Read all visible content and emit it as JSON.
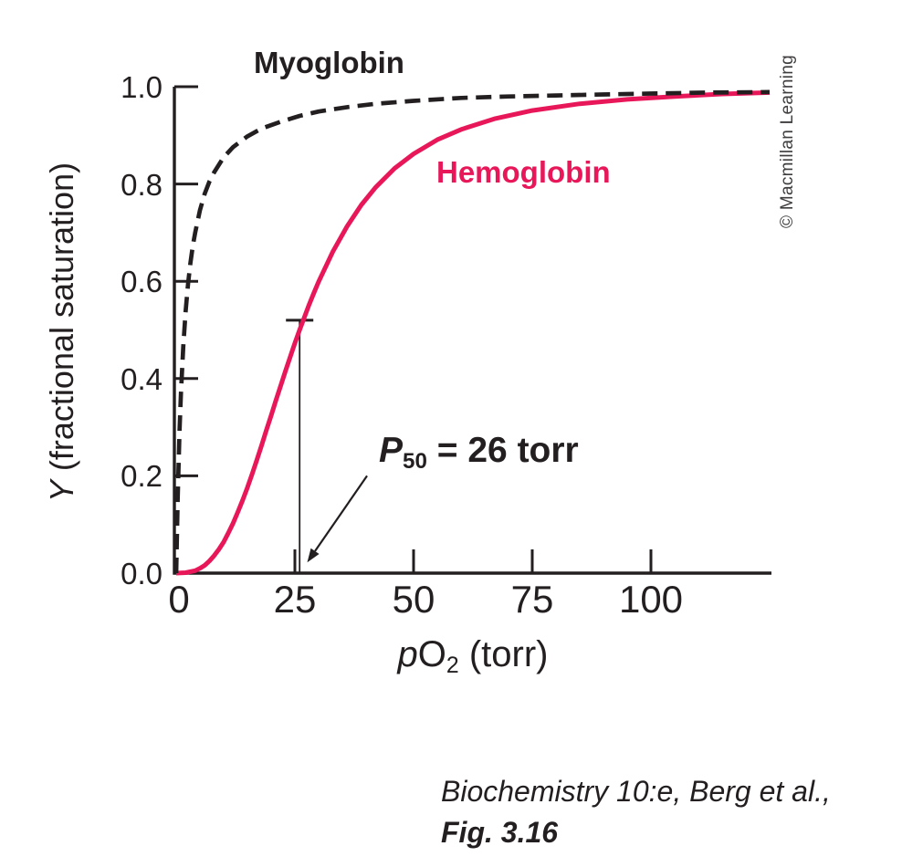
{
  "figure": {
    "series_labels": {
      "myoglobin": "Myoglobin",
      "hemoglobin": "Hemoglobin"
    },
    "credit": "© Macmillan Learning",
    "caption_line1": "Biochemistry 10:e, Berg et al.,",
    "caption_line2": "Fig. 3.16"
  },
  "colors": {
    "ink": "#231f20",
    "hemoglobin_red": "#e8175a"
  },
  "chart_data": {
    "type": "line",
    "title": "",
    "xlabel_text": "pO2 (torr)",
    "ylabel_text": "Y (fractional saturation)",
    "xlabel": {
      "italic": "p",
      "main": "O",
      "sub": "2",
      "rest": " (torr)"
    },
    "ylabel": {
      "italic": "Y",
      "rest": " (fractional saturation)"
    },
    "xlim": [
      0,
      125
    ],
    "ylim": [
      0,
      1.0
    ],
    "grid": false,
    "legend_position": "inline-labels",
    "x_ticks": [
      25,
      50,
      75,
      100
    ],
    "x_tick_labels": [
      "0",
      "25",
      "50",
      "75",
      "100"
    ],
    "y_ticks": [
      0.2,
      0.4,
      0.6,
      0.8,
      1.0
    ],
    "y_tick_labels": [
      "1.0",
      "0.8",
      "0.6",
      "0.4",
      "0.2",
      "0.0"
    ],
    "series": [
      {
        "name": "Myoglobin",
        "color": "#231f20",
        "line_style": "dashed",
        "points": [
          [
            0,
            0
          ],
          [
            0.3,
            0.15
          ],
          [
            0.7,
            0.29
          ],
          [
            1,
            0.37
          ],
          [
            1.5,
            0.468
          ],
          [
            2,
            0.54
          ],
          [
            2.5,
            0.595
          ],
          [
            3,
            0.638
          ],
          [
            3.5,
            0.673
          ],
          [
            4,
            0.7
          ],
          [
            5,
            0.746
          ],
          [
            6,
            0.78
          ],
          [
            7,
            0.805
          ],
          [
            8,
            0.824
          ],
          [
            10,
            0.855
          ],
          [
            12,
            0.876
          ],
          [
            15,
            0.898
          ],
          [
            18,
            0.914
          ],
          [
            22,
            0.928
          ],
          [
            26,
            0.94
          ],
          [
            30,
            0.949
          ],
          [
            36,
            0.958
          ],
          [
            42,
            0.965
          ],
          [
            50,
            0.971
          ],
          [
            60,
            0.977
          ],
          [
            70,
            0.98
          ],
          [
            80,
            0.982
          ],
          [
            90,
            0.984
          ],
          [
            100,
            0.986
          ],
          [
            112,
            0.988
          ],
          [
            125,
            0.989
          ]
        ]
      },
      {
        "name": "Hemoglobin",
        "color": "#e8175a",
        "line_style": "solid",
        "points": [
          [
            0,
            0
          ],
          [
            2,
            0.001
          ],
          [
            4,
            0.005
          ],
          [
            5,
            0.01
          ],
          [
            6,
            0.016
          ],
          [
            7,
            0.025
          ],
          [
            8,
            0.036
          ],
          [
            9,
            0.049
          ],
          [
            10,
            0.064
          ],
          [
            11,
            0.083
          ],
          [
            12,
            0.103
          ],
          [
            13,
            0.126
          ],
          [
            14,
            0.15
          ],
          [
            15,
            0.176
          ],
          [
            16,
            0.204
          ],
          [
            17,
            0.233
          ],
          [
            18,
            0.263
          ],
          [
            19,
            0.294
          ],
          [
            20,
            0.324
          ],
          [
            21,
            0.355
          ],
          [
            22,
            0.385
          ],
          [
            23,
            0.415
          ],
          [
            24,
            0.444
          ],
          [
            25,
            0.473
          ],
          [
            26,
            0.5
          ],
          [
            27,
            0.526
          ],
          [
            28,
            0.552
          ],
          [
            29,
            0.576
          ],
          [
            30,
            0.599
          ],
          [
            33,
            0.661
          ],
          [
            36,
            0.713
          ],
          [
            39,
            0.757
          ],
          [
            42,
            0.793
          ],
          [
            46,
            0.832
          ],
          [
            50,
            0.862
          ],
          [
            55,
            0.891
          ],
          [
            60,
            0.912
          ],
          [
            67,
            0.934
          ],
          [
            75,
            0.951
          ],
          [
            85,
            0.965
          ],
          [
            95,
            0.974
          ],
          [
            105,
            0.98
          ],
          [
            115,
            0.985
          ],
          [
            125,
            0.988
          ]
        ]
      }
    ],
    "annotation": {
      "label_italic": "P",
      "label_sub": "50",
      "label_rest": " = 26 torr",
      "p50_torr": 26,
      "marker_top_y": 0.52,
      "arrow_from": [
        40.2,
        0.2
      ],
      "arrow_to": [
        27.6,
        0.022
      ]
    }
  }
}
